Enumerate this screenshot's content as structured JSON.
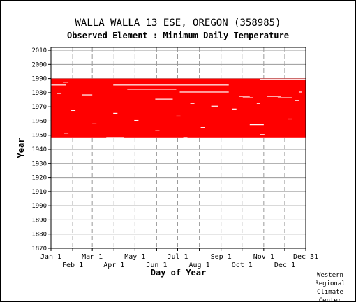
{
  "title": "WALLA WALLA 13 ESE, OREGON   (358985)",
  "subtitle": "Observed Element : Minimum Daily Temperature",
  "credit": [
    "Western",
    "Regional",
    "Climate",
    "Center"
  ],
  "chart_data": {
    "type": "heatmap",
    "title": "WALLA WALLA 13 ESE, OREGON   (358985)",
    "subtitle": "Observed Element : Minimum Daily Temperature",
    "xlabel": "Day of Year",
    "ylabel": "Year",
    "xlim": [
      1,
      365
    ],
    "ylim": [
      1870,
      2012
    ],
    "grid": true,
    "x_ticks_top": [
      {
        "label": "Jan 1",
        "day": 1
      },
      {
        "label": "Mar 1",
        "day": 60
      },
      {
        "label": "May 1",
        "day": 121
      },
      {
        "label": "Jul 1",
        "day": 182
      },
      {
        "label": "Sep 1",
        "day": 244
      },
      {
        "label": "Nov 1",
        "day": 305
      },
      {
        "label": "Dec 31",
        "day": 365
      }
    ],
    "x_ticks_bottom": [
      {
        "label": "Feb 1",
        "day": 32
      },
      {
        "label": "Apr 1",
        "day": 91
      },
      {
        "label": "Jun 1",
        "day": 152
      },
      {
        "label": "Aug 1",
        "day": 213
      },
      {
        "label": "Oct 1",
        "day": 274
      },
      {
        "label": "Dec 1",
        "day": 335
      }
    ],
    "y_ticks": [
      "1870",
      "1880",
      "1890",
      "1900",
      "1910",
      "1920",
      "1930",
      "1940",
      "1950",
      "1960",
      "1970",
      "1980",
      "1990",
      "2000",
      "2010"
    ],
    "data_color": "#ff0000",
    "coverage": {
      "first_year": 1948,
      "last_year": 1989,
      "description": "Daily observations available nearly every day from 1948 through 1989"
    },
    "missing_segments": [
      {
        "year": 1989,
        "start_day": 300,
        "end_day": 365
      },
      {
        "year": 1987,
        "start_day": 18,
        "end_day": 26
      },
      {
        "year": 1985,
        "start_day": 1,
        "end_day": 22
      },
      {
        "year": 1985,
        "start_day": 90,
        "end_day": 255
      },
      {
        "year": 1982,
        "start_day": 110,
        "end_day": 180
      },
      {
        "year": 1980,
        "start_day": 185,
        "end_day": 255
      },
      {
        "year": 1980,
        "start_day": 355,
        "end_day": 360
      },
      {
        "year": 1979,
        "start_day": 10,
        "end_day": 16
      },
      {
        "year": 1978,
        "start_day": 45,
        "end_day": 60
      },
      {
        "year": 1977,
        "start_day": 270,
        "end_day": 285
      },
      {
        "year": 1977,
        "start_day": 310,
        "end_day": 330
      },
      {
        "year": 1976,
        "start_day": 275,
        "end_day": 290
      },
      {
        "year": 1976,
        "start_day": 325,
        "end_day": 345
      },
      {
        "year": 1975,
        "start_day": 150,
        "end_day": 175
      },
      {
        "year": 1974,
        "start_day": 350,
        "end_day": 356
      },
      {
        "year": 1972,
        "start_day": 200,
        "end_day": 206
      },
      {
        "year": 1972,
        "start_day": 295,
        "end_day": 300
      },
      {
        "year": 1970,
        "start_day": 230,
        "end_day": 240
      },
      {
        "year": 1968,
        "start_day": 260,
        "end_day": 266
      },
      {
        "year": 1967,
        "start_day": 30,
        "end_day": 36
      },
      {
        "year": 1965,
        "start_day": 90,
        "end_day": 96
      },
      {
        "year": 1963,
        "start_day": 180,
        "end_day": 186
      },
      {
        "year": 1961,
        "start_day": 340,
        "end_day": 346
      },
      {
        "year": 1960,
        "start_day": 120,
        "end_day": 126
      },
      {
        "year": 1958,
        "start_day": 60,
        "end_day": 66
      },
      {
        "year": 1957,
        "start_day": 285,
        "end_day": 305
      },
      {
        "year": 1955,
        "start_day": 215,
        "end_day": 221
      },
      {
        "year": 1953,
        "start_day": 150,
        "end_day": 156
      },
      {
        "year": 1951,
        "start_day": 20,
        "end_day": 26
      },
      {
        "year": 1950,
        "start_day": 300,
        "end_day": 306
      },
      {
        "year": 1948,
        "start_day": 80,
        "end_day": 105
      },
      {
        "year": 1948,
        "start_day": 190,
        "end_day": 196
      }
    ]
  }
}
